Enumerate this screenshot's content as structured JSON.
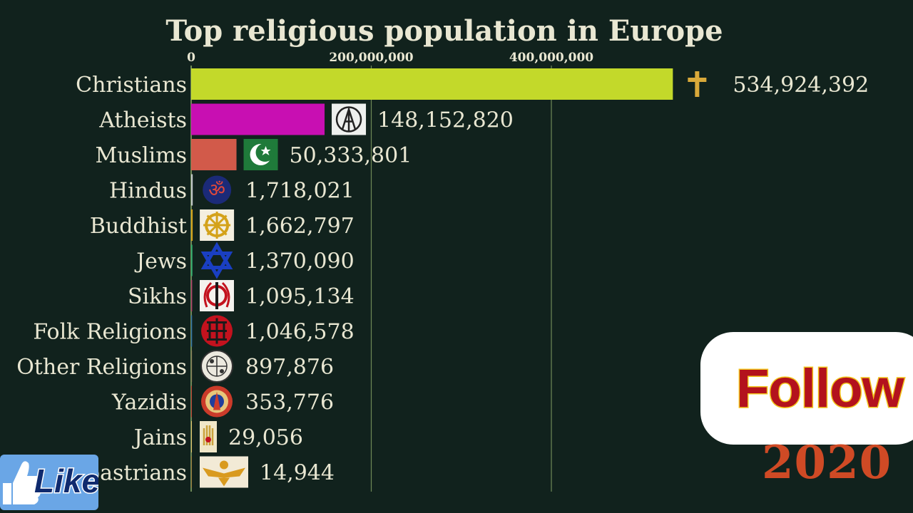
{
  "chart_data": {
    "type": "bar",
    "orientation": "horizontal",
    "title": "Top religious population in Europe",
    "xlim": [
      0,
      534924392
    ],
    "x_ticks": [
      {
        "value": 0,
        "label": "0"
      },
      {
        "value": 200000000,
        "label": "200,000,000"
      },
      {
        "value": 400000000,
        "label": "400,000,000"
      }
    ],
    "grid": true,
    "categories": [
      "Christians",
      "Atheists",
      "Muslims",
      "Hindus",
      "Buddhist",
      "Jews",
      "Sikhs",
      "Folk Religions",
      "Other Religions",
      "Yazidis",
      "Jains",
      "Zoroastrians"
    ],
    "values": [
      534924392,
      148152820,
      50333801,
      1718021,
      1662797,
      1370090,
      1095134,
      1046578,
      897876,
      353776,
      29056,
      14944
    ],
    "value_labels": [
      "534,924,392",
      "148,152,820",
      "50,333,801",
      "1,718,021",
      "1,662,797",
      "1,370,090",
      "1,095,134",
      "1,046,578",
      "897,876",
      "353,776",
      "29,056",
      "14,944"
    ],
    "colors": [
      "#c3d92a",
      "#c80fb2",
      "#d25a4a",
      "#c0c6c8",
      "#d6a319",
      "#2fae6e",
      "#b23a6a",
      "#2a6fa8",
      "#8a7f5a",
      "#bd3a2e",
      "#e2c26c",
      "#9a7a3a"
    ],
    "icons": [
      "cross-icon",
      "atheism-icon",
      "crescent-star-icon",
      "om-icon",
      "dharma-wheel-icon",
      "star-of-david-icon",
      "khanda-icon",
      "folk-symbol-icon",
      "religions-emblem-icon",
      "yazidi-sun-icon",
      "jain-hand-icon",
      "faravahar-icon"
    ]
  },
  "overlay": {
    "follow_label": "Follow",
    "year": "2020",
    "like_label": "Like"
  },
  "colors": {
    "background": "#11221d",
    "text": "#e9e7d2",
    "grid": "#6f8a58"
  }
}
